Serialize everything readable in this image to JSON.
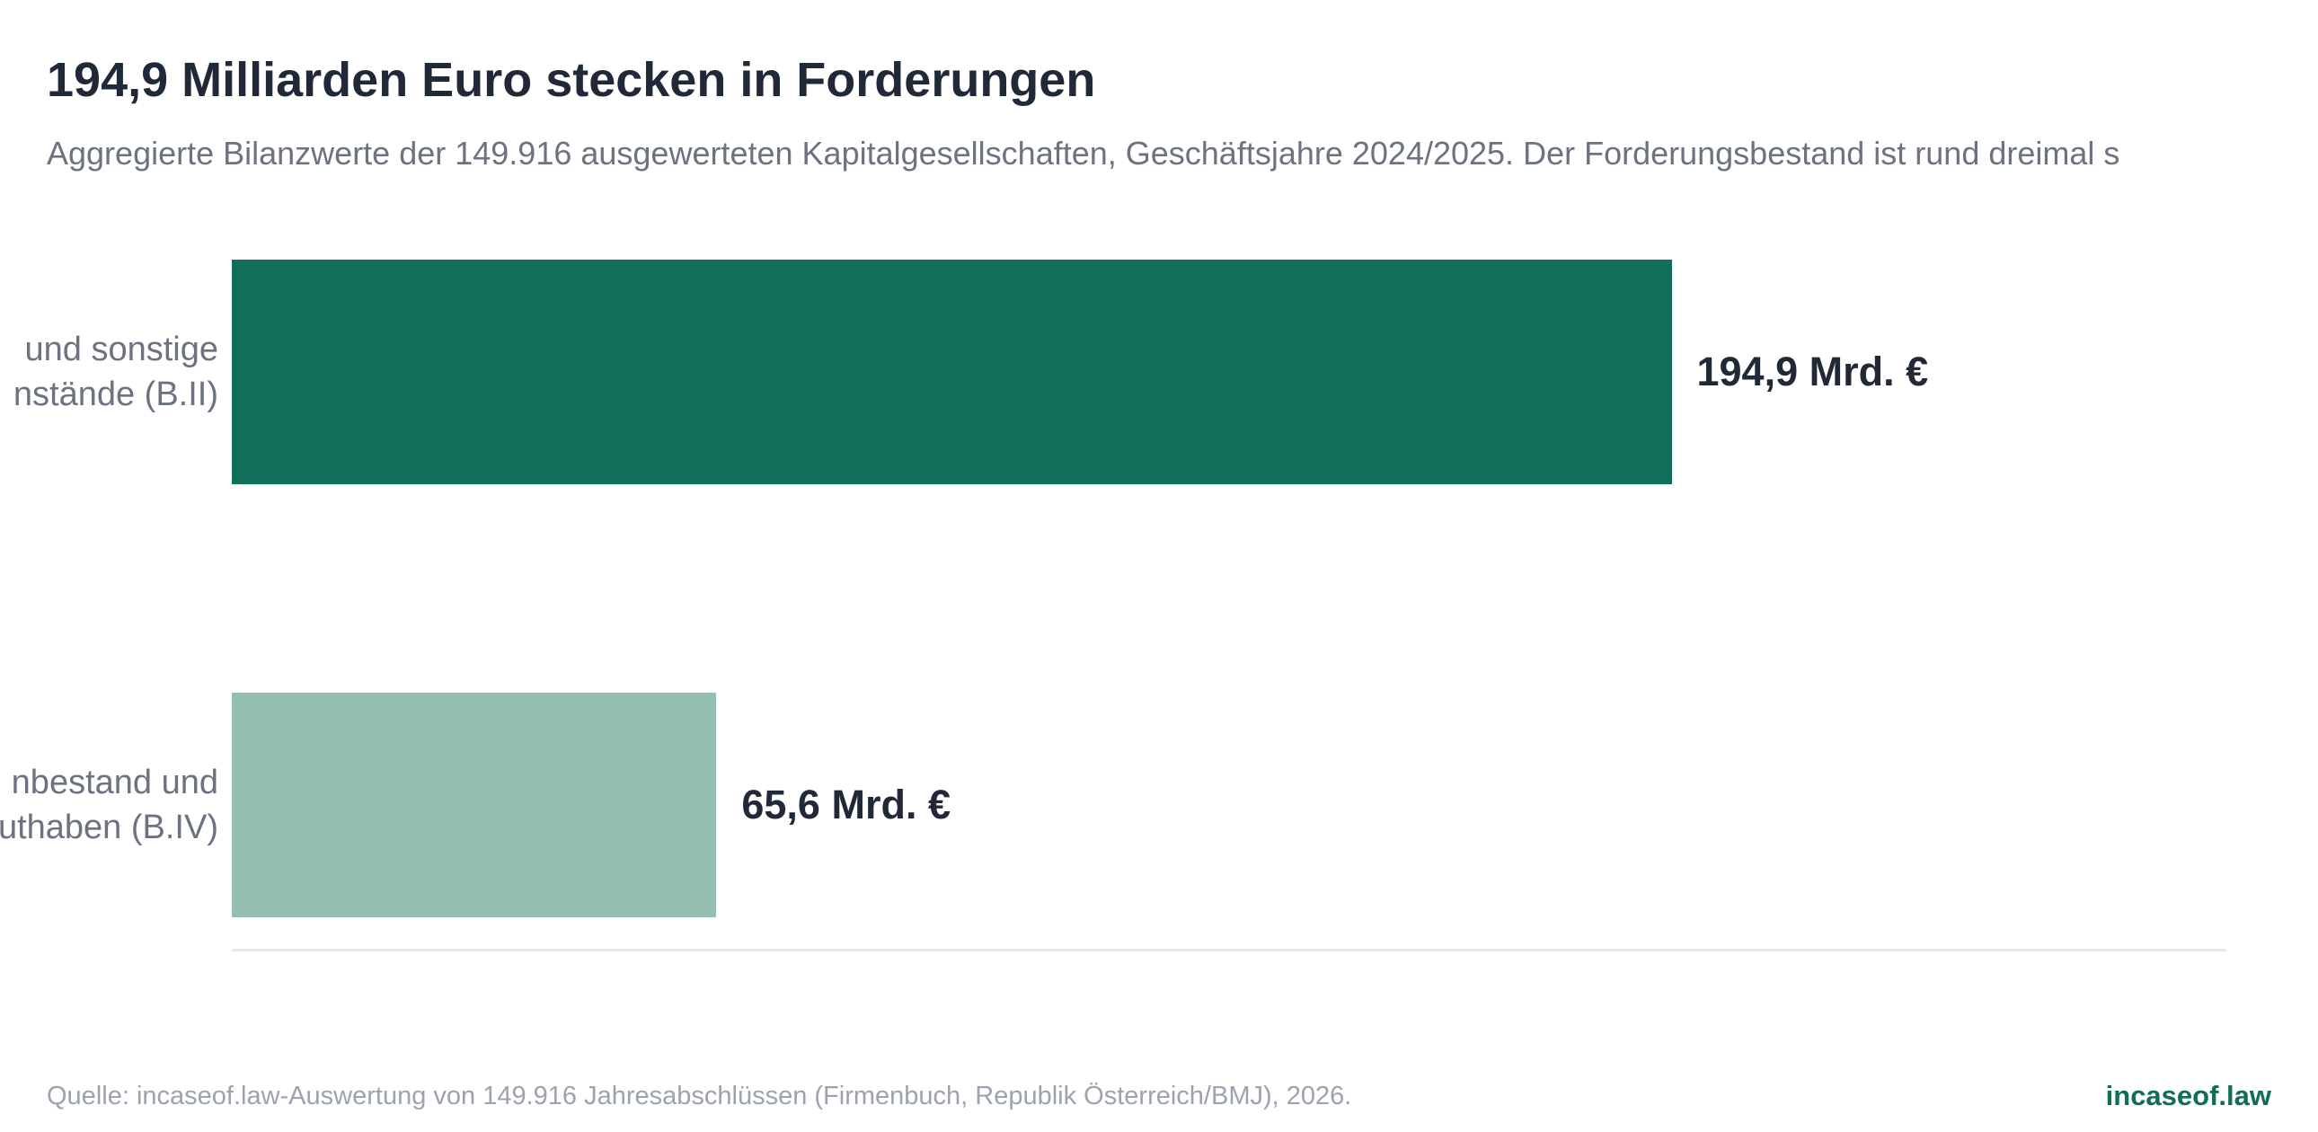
{
  "chart_data": {
    "type": "bar",
    "orientation": "horizontal",
    "title": "194,9 Milliarden Euro stecken in Forderungen",
    "subtitle": "Aggregierte Bilanzwerte der 149.916 ausgewerteten Kapitalgesellschaften, Geschäftsjahre 2024/2025. Der Forderungsbestand ist rund dreimal s",
    "categories": [
      [
        "und sonstige",
        "nstände (B.II)"
      ],
      [
        "nbestand und",
        "uthaben (B.IV)"
      ]
    ],
    "values": [
      194.9,
      65.6
    ],
    "value_labels": [
      "194,9 Mrd. €",
      "65,6 Mrd. €"
    ],
    "colors": [
      "#116e59",
      "#92bfb1"
    ],
    "unit": "Mrd. €",
    "xlim": [
      0,
      270
    ],
    "grid": false,
    "legend": "none"
  },
  "footer": {
    "source": "Quelle: incaseof.law-Auswertung von 149.916 Jahresabschlüssen (Firmenbuch, Republik Österreich/BMJ), 2026.",
    "brand": "incaseof.law"
  }
}
